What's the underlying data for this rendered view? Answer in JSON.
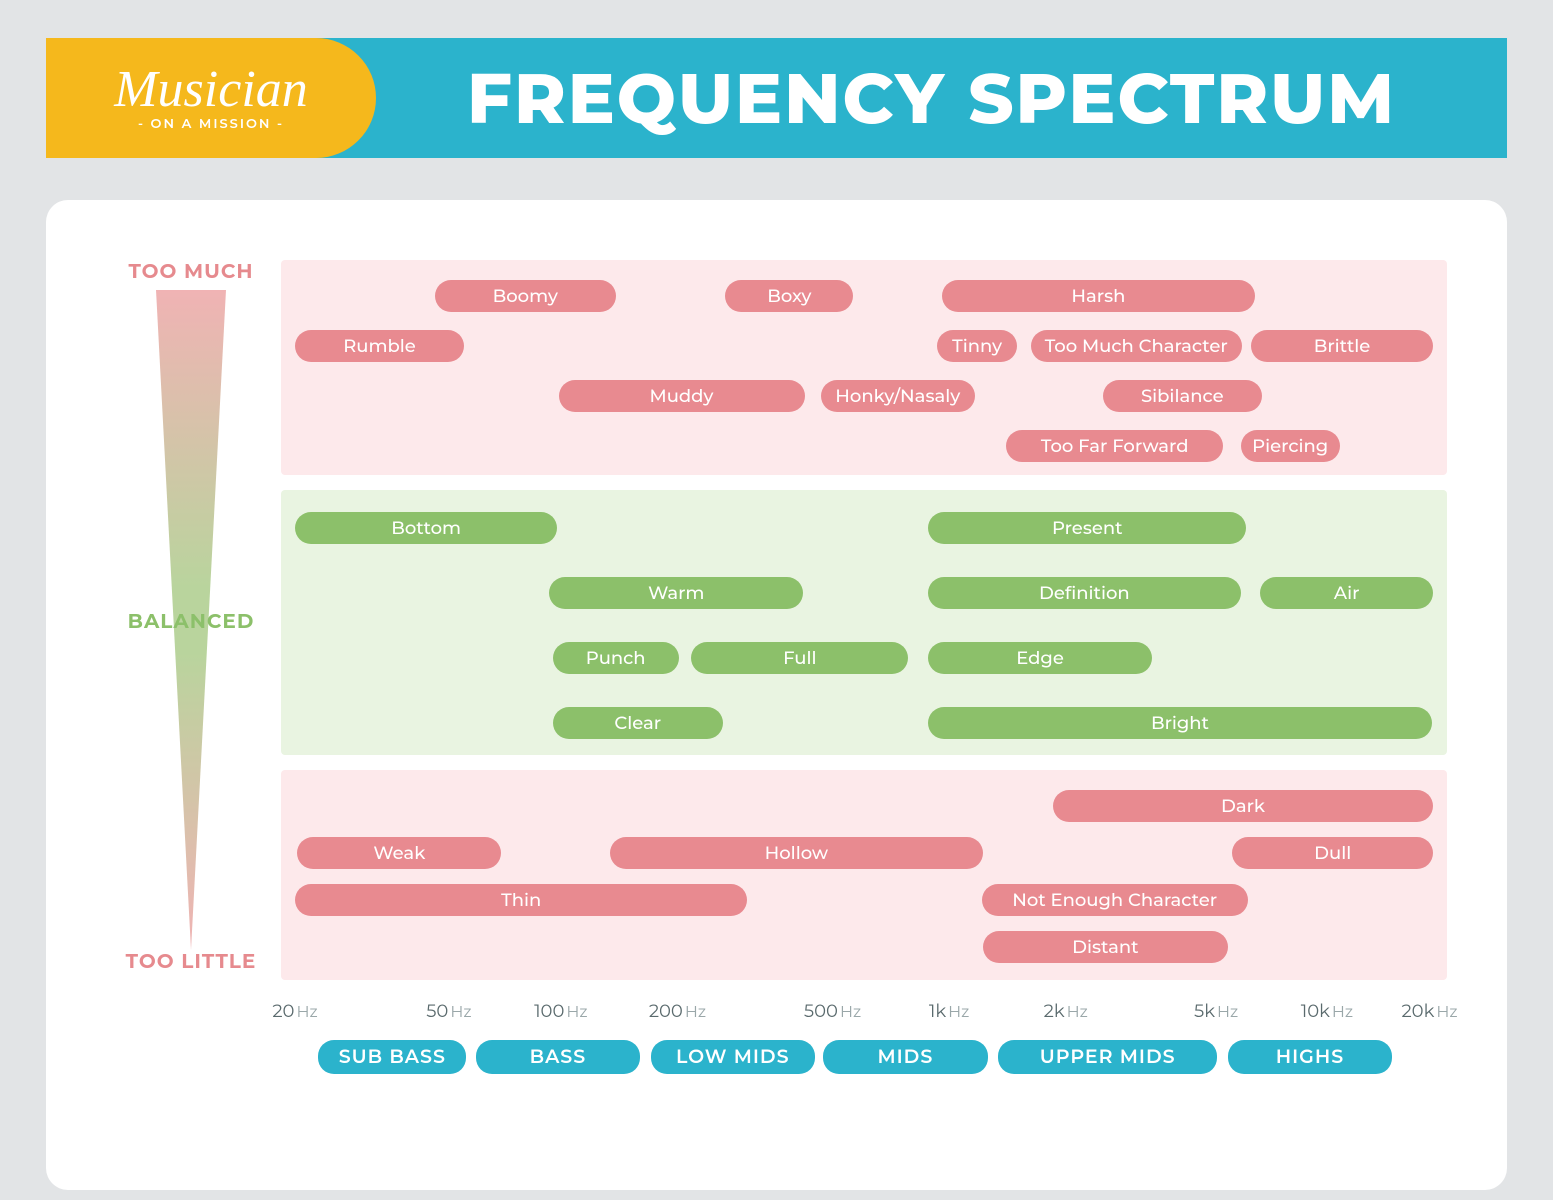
{
  "header": {
    "logo_script": "Musician",
    "logo_tag": "- ON A MISSION -",
    "title": "FREQUENCY SPECTRUM"
  },
  "scale": {
    "too_much": "TOO MUCH",
    "balanced": "BALANCED",
    "too_little": "TOO LITTLE"
  },
  "colors": {
    "red": "#e88a90",
    "green": "#8cc06a",
    "blue": "#2bb3cc",
    "zone_red": "#fde9eb",
    "zone_green": "#e9f4e1",
    "banner_blue": "#2bb3cc",
    "banner_gold": "#f5b81c"
  },
  "axis_ticks": [
    {
      "label": "20",
      "unit": "Hz",
      "pct": 1.2
    },
    {
      "label": "50",
      "unit": "Hz",
      "pct": 14.4
    },
    {
      "label": "100",
      "unit": "Hz",
      "pct": 24.0
    },
    {
      "label": "200",
      "unit": "Hz",
      "pct": 34.0
    },
    {
      "label": "500",
      "unit": "Hz",
      "pct": 47.3
    },
    {
      "label": "1k",
      "unit": "Hz",
      "pct": 57.3
    },
    {
      "label": "2k",
      "unit": "Hz",
      "pct": 67.3
    },
    {
      "label": "5k",
      "unit": "Hz",
      "pct": 80.2
    },
    {
      "label": "10k",
      "unit": "Hz",
      "pct": 89.7
    },
    {
      "label": "20k",
      "unit": "Hz",
      "pct": 98.5
    }
  ],
  "bands": [
    {
      "label": "SUB BASS",
      "left_pct": 3.2,
      "width_pct": 12.7
    },
    {
      "label": "BASS",
      "left_pct": 16.7,
      "width_pct": 14.1
    },
    {
      "label": "LOW MIDS",
      "left_pct": 31.7,
      "width_pct": 14.1
    },
    {
      "label": "MIDS",
      "left_pct": 46.5,
      "width_pct": 14.1
    },
    {
      "label": "UPPER MIDS",
      "left_pct": 61.5,
      "width_pct": 18.8
    },
    {
      "label": "HIGHS",
      "left_pct": 81.2,
      "width_pct": 14.1
    }
  ],
  "pills_toomuch": [
    {
      "label": "Boomy",
      "left_pct": 13.2,
      "width_pct": 15.5,
      "row": 0
    },
    {
      "label": "Boxy",
      "left_pct": 38.1,
      "width_pct": 11.0,
      "row": 0
    },
    {
      "label": "Harsh",
      "left_pct": 56.7,
      "width_pct": 26.8,
      "row": 0
    },
    {
      "label": "Rumble",
      "left_pct": 1.2,
      "width_pct": 14.5,
      "row": 1
    },
    {
      "label": "Tinny",
      "left_pct": 56.3,
      "width_pct": 6.8,
      "row": 1
    },
    {
      "label": "Too Much Character",
      "left_pct": 64.3,
      "width_pct": 18.1,
      "row": 1
    },
    {
      "label": "Brittle",
      "left_pct": 83.2,
      "width_pct": 15.6,
      "row": 1
    },
    {
      "label": "Muddy",
      "left_pct": 23.8,
      "width_pct": 21.1,
      "row": 2
    },
    {
      "label": "Honky/Nasaly",
      "left_pct": 46.3,
      "width_pct": 13.2,
      "row": 2
    },
    {
      "label": "Sibilance",
      "left_pct": 70.5,
      "width_pct": 13.6,
      "row": 2
    },
    {
      "label": "Too Far Forward",
      "left_pct": 62.2,
      "width_pct": 18.6,
      "row": 3
    },
    {
      "label": "Piercing",
      "left_pct": 82.3,
      "width_pct": 8.5,
      "row": 3
    }
  ],
  "pills_balanced": [
    {
      "label": "Bottom",
      "left_pct": 1.2,
      "width_pct": 22.5,
      "row": 0
    },
    {
      "label": "Present",
      "left_pct": 55.5,
      "width_pct": 27.3,
      "row": 0
    },
    {
      "label": "Warm",
      "left_pct": 23.0,
      "width_pct": 21.8,
      "row": 1
    },
    {
      "label": "Definition",
      "left_pct": 55.5,
      "width_pct": 26.8,
      "row": 1
    },
    {
      "label": "Air",
      "left_pct": 84.0,
      "width_pct": 14.8,
      "row": 1
    },
    {
      "label": "Punch",
      "left_pct": 23.3,
      "width_pct": 10.8,
      "row": 2
    },
    {
      "label": "Full",
      "left_pct": 35.2,
      "width_pct": 18.6,
      "row": 2
    },
    {
      "label": "Edge",
      "left_pct": 55.5,
      "width_pct": 19.2,
      "row": 2
    },
    {
      "label": "Clear",
      "left_pct": 23.3,
      "width_pct": 14.6,
      "row": 3
    },
    {
      "label": "Bright",
      "left_pct": 55.5,
      "width_pct": 43.2,
      "row": 3
    }
  ],
  "pills_toolittle": [
    {
      "label": "Dark",
      "left_pct": 66.2,
      "width_pct": 32.6,
      "row": 0
    },
    {
      "label": "Weak",
      "left_pct": 1.4,
      "width_pct": 17.5,
      "row": 1
    },
    {
      "label": "Hollow",
      "left_pct": 28.2,
      "width_pct": 32.0,
      "row": 1
    },
    {
      "label": "Dull",
      "left_pct": 81.6,
      "width_pct": 17.2,
      "row": 1
    },
    {
      "label": "Thin",
      "left_pct": 1.2,
      "width_pct": 38.8,
      "row": 2
    },
    {
      "label": "Not Enough Character",
      "left_pct": 60.1,
      "width_pct": 22.8,
      "row": 2
    },
    {
      "label": "Distant",
      "left_pct": 60.2,
      "width_pct": 21.0,
      "row": 3
    }
  ],
  "row_spacing": {
    "toomuch": {
      "start": 20,
      "step": 50
    },
    "balanced": {
      "start": 22,
      "step": 65
    },
    "toolittle": {
      "start": 20,
      "step": 47
    }
  }
}
